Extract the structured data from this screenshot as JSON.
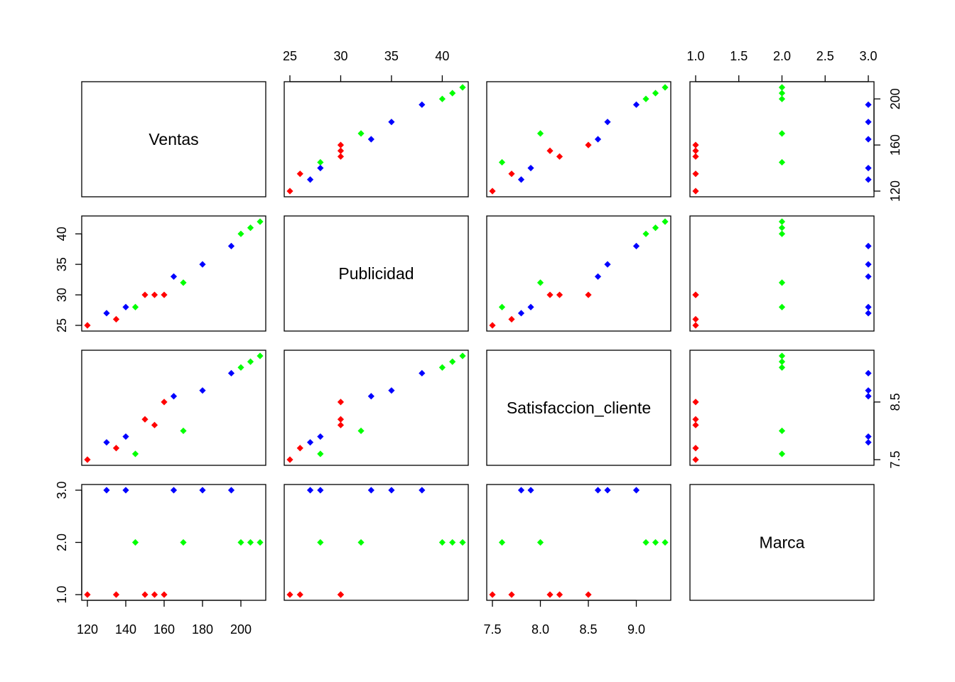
{
  "chart_data": {
    "type": "scatter",
    "variables": [
      "Ventas",
      "Publicidad",
      "Satisfaccion_cliente",
      "Marca"
    ],
    "group_colors": {
      "1": "#ff0000",
      "2": "#00ff00",
      "3": "#0000ff"
    },
    "axis_ticks": {
      "Ventas": [
        "120",
        "140",
        "160",
        "180",
        "200"
      ],
      "Publicidad": [
        "25",
        "30",
        "35",
        "40"
      ],
      "Satisfaccion_cliente": [
        "7.5",
        "8.0",
        "8.5",
        "9.0"
      ],
      "Marca": [
        "1.0",
        "1.5",
        "2.0",
        "2.5",
        "3.0"
      ]
    },
    "axis_ticks_rows": {
      "Ventas": [
        "120",
        "160",
        "200"
      ],
      "Publicidad": [
        "25",
        "30",
        "35",
        "40"
      ],
      "Satisfaccion_cliente": [
        "7.5",
        "8.5"
      ],
      "Marca": [
        "1.0",
        "2.0",
        "3.0"
      ]
    },
    "ranges": {
      "Ventas": [
        120,
        210
      ],
      "Publicidad": [
        25,
        42
      ],
      "Satisfaccion_cliente": [
        7.5,
        9.3
      ],
      "Marca": [
        1,
        3
      ]
    },
    "points": [
      {
        "Ventas": 120,
        "Publicidad": 25,
        "Satisfaccion_cliente": 7.5,
        "Marca": 1
      },
      {
        "Ventas": 135,
        "Publicidad": 26,
        "Satisfaccion_cliente": 7.7,
        "Marca": 1
      },
      {
        "Ventas": 150,
        "Publicidad": 30,
        "Satisfaccion_cliente": 8.2,
        "Marca": 1
      },
      {
        "Ventas": 155,
        "Publicidad": 30,
        "Satisfaccion_cliente": 8.1,
        "Marca": 1
      },
      {
        "Ventas": 160,
        "Publicidad": 30,
        "Satisfaccion_cliente": 8.5,
        "Marca": 1
      },
      {
        "Ventas": 145,
        "Publicidad": 28,
        "Satisfaccion_cliente": 7.6,
        "Marca": 2
      },
      {
        "Ventas": 170,
        "Publicidad": 32,
        "Satisfaccion_cliente": 8.0,
        "Marca": 2
      },
      {
        "Ventas": 200,
        "Publicidad": 40,
        "Satisfaccion_cliente": 9.1,
        "Marca": 2
      },
      {
        "Ventas": 205,
        "Publicidad": 41,
        "Satisfaccion_cliente": 9.2,
        "Marca": 2
      },
      {
        "Ventas": 210,
        "Publicidad": 42,
        "Satisfaccion_cliente": 9.3,
        "Marca": 2
      },
      {
        "Ventas": 130,
        "Publicidad": 27,
        "Satisfaccion_cliente": 7.8,
        "Marca": 3
      },
      {
        "Ventas": 140,
        "Publicidad": 28,
        "Satisfaccion_cliente": 7.9,
        "Marca": 3
      },
      {
        "Ventas": 165,
        "Publicidad": 33,
        "Satisfaccion_cliente": 8.6,
        "Marca": 3
      },
      {
        "Ventas": 180,
        "Publicidad": 35,
        "Satisfaccion_cliente": 8.7,
        "Marca": 3
      },
      {
        "Ventas": 195,
        "Publicidad": 38,
        "Satisfaccion_cliente": 9.0,
        "Marca": 3
      }
    ],
    "title": "",
    "grid": false
  }
}
